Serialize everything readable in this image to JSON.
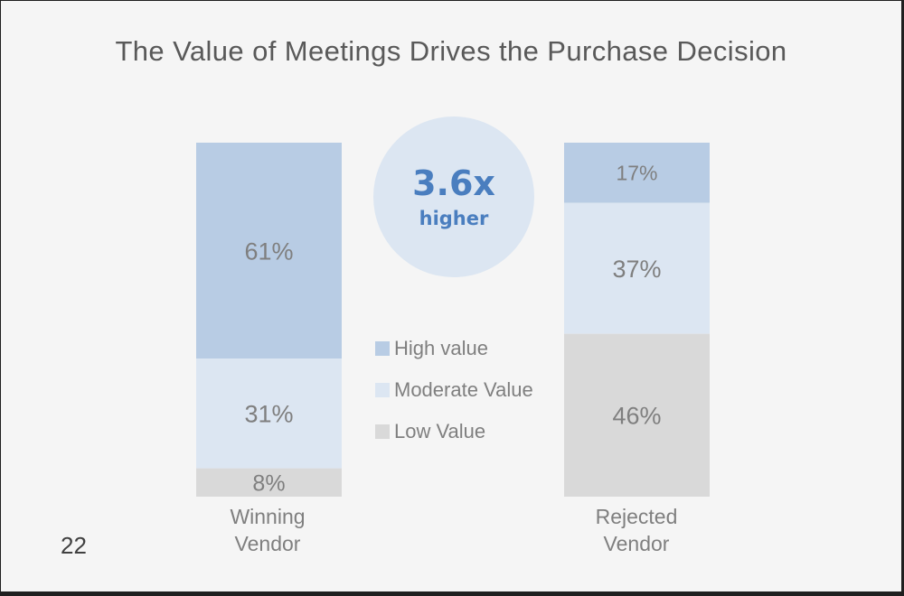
{
  "title": "The Value of Meetings Drives the Purchase Decision",
  "callout": {
    "value": "3.6x",
    "text": "higher"
  },
  "page_number": "22",
  "colors": {
    "high": "#b8cce4",
    "moderate": "#dce6f2",
    "low": "#d9d9d9",
    "callout_circle": "#dce6f2",
    "callout_text": "#4a7ebf"
  },
  "chart_data": {
    "type": "bar",
    "stacked": true,
    "percent_stacked": true,
    "title": "The Value of Meetings Drives the Purchase Decision",
    "categories": [
      {
        "line1": "Winning",
        "line2": "Vendor"
      },
      {
        "line1": "Rejected",
        "line2": "Vendor"
      }
    ],
    "series": [
      {
        "name": "High value",
        "color": "#b8cce4",
        "values": [
          61,
          17
        ],
        "labels": [
          "61%",
          "17%"
        ]
      },
      {
        "name": "Moderate Value",
        "color": "#dce6f2",
        "values": [
          31,
          37
        ],
        "labels": [
          "31%",
          "37%"
        ]
      },
      {
        "name": "Low Value",
        "color": "#d9d9d9",
        "values": [
          8,
          46
        ],
        "labels": [
          "8%",
          "46%"
        ]
      }
    ],
    "ylim": [
      0,
      100
    ],
    "grid": false,
    "legend": "center"
  }
}
